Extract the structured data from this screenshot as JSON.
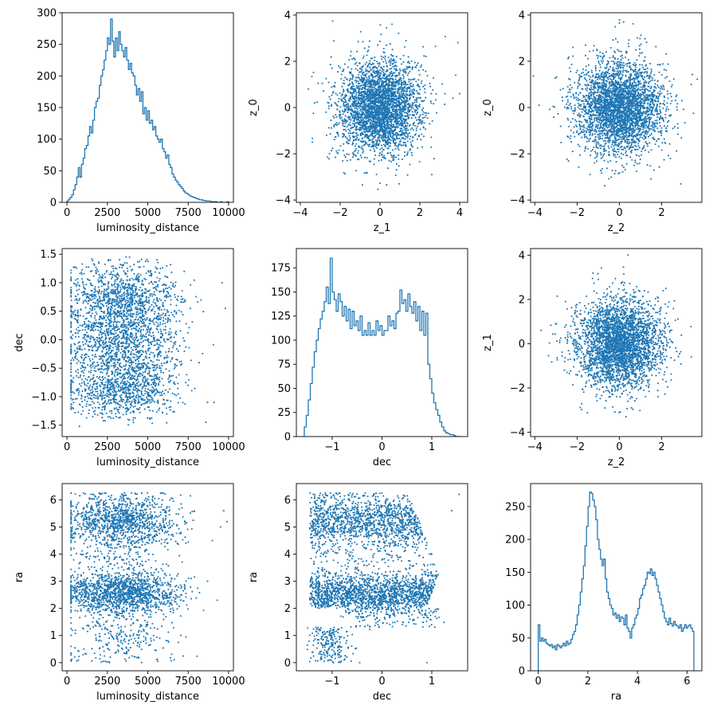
{
  "chart_data": [
    {
      "type": "histogram",
      "xlabel": "luminosity_distance",
      "ylabel": "",
      "xlim": [
        -300,
        10300
      ],
      "ylim": [
        0,
        300
      ],
      "xticks": [
        0,
        2500,
        5000,
        7500,
        10000
      ],
      "xtick_labels": [
        "0",
        "2500",
        "5000",
        "7500",
        "10000"
      ],
      "yticks": [
        0,
        50,
        100,
        150,
        200,
        250,
        300
      ],
      "ytick_labels": [
        "0",
        "50",
        "100",
        "150",
        "200",
        "250",
        "300"
      ],
      "bins": {
        "start": 0,
        "width": 100,
        "counts": [
          2,
          5,
          8,
          12,
          20,
          28,
          40,
          55,
          40,
          60,
          70,
          85,
          90,
          105,
          120,
          110,
          130,
          150,
          160,
          165,
          185,
          200,
          210,
          225,
          240,
          260,
          250,
          290,
          255,
          230,
          260,
          240,
          270,
          250,
          240,
          230,
          245,
          225,
          210,
          220,
          205,
          200,
          185,
          170,
          180,
          160,
          175,
          140,
          150,
          130,
          145,
          125,
          130,
          115,
          120,
          105,
          100,
          95,
          100,
          85,
          80,
          70,
          75,
          60,
          55,
          45,
          40,
          35,
          32,
          28,
          25,
          22,
          18,
          15,
          14,
          12,
          10,
          9,
          8,
          7,
          6,
          5,
          4,
          4,
          3,
          3,
          2,
          2,
          2,
          1,
          1,
          1,
          1,
          0,
          0,
          1,
          0,
          0,
          0,
          1
        ]
      },
      "style": {
        "color": "#1f77b4"
      }
    },
    {
      "type": "scatter",
      "xlabel": "z_1",
      "ylabel": "z_0",
      "xlim": [
        -4.2,
        4.4
      ],
      "ylim": [
        -4.1,
        4.1
      ],
      "xticks": [
        -4,
        -2,
        0,
        2,
        4
      ],
      "xtick_labels": [
        "−4",
        "−2",
        "0",
        "2",
        "4"
      ],
      "yticks": [
        -4,
        -2,
        0,
        2,
        4
      ],
      "ytick_labels": [
        "−4",
        "−2",
        "0",
        "2",
        "4"
      ],
      "distribution": {
        "kind": "gaussian2d",
        "n": 3200,
        "mean": [
          0,
          0
        ],
        "sd": [
          1,
          1
        ]
      },
      "outliers": [
        [
          4.0,
          0.6
        ],
        [
          3.8,
          1.4
        ],
        [
          -3.6,
          0.8
        ],
        [
          -3.4,
          -1.5
        ],
        [
          2.6,
          -2.9
        ],
        [
          0.6,
          3.6
        ]
      ],
      "style": {
        "color": "#1f77b4"
      }
    },
    {
      "type": "scatter",
      "xlabel": "z_2",
      "ylabel": "z_0",
      "xlim": [
        -4.2,
        3.9
      ],
      "ylim": [
        -4.1,
        4.1
      ],
      "xticks": [
        -4,
        -2,
        0,
        2
      ],
      "xtick_labels": [
        "−4",
        "−2",
        "0",
        "2"
      ],
      "yticks": [
        -4,
        -2,
        0,
        2,
        4
      ],
      "ytick_labels": [
        "−4",
        "−2",
        "0",
        "2",
        "4"
      ],
      "distribution": {
        "kind": "gaussian2d",
        "n": 3200,
        "mean": [
          0,
          0
        ],
        "sd": [
          1,
          1
        ]
      },
      "outliers": [
        [
          -3.8,
          0.1
        ],
        [
          3.4,
          1.0
        ],
        [
          2.9,
          -3.3
        ],
        [
          -2.2,
          2.6
        ],
        [
          0.2,
          3.7
        ]
      ],
      "style": {
        "color": "#1f77b4"
      }
    },
    {
      "type": "scatter",
      "xlabel": "luminosity_distance",
      "ylabel": "dec",
      "xlim": [
        -300,
        10300
      ],
      "ylim": [
        -1.7,
        1.6
      ],
      "xticks": [
        0,
        2500,
        5000,
        7500,
        10000
      ],
      "xtick_labels": [
        "0",
        "2500",
        "5000",
        "7500",
        "10000"
      ],
      "yticks": [
        -1.5,
        -1.0,
        -0.5,
        0.0,
        0.5,
        1.0,
        1.5
      ],
      "ytick_labels": [
        "−1.5",
        "−1.0",
        "−0.5",
        "0.0",
        "0.5",
        "1.0",
        "1.5"
      ],
      "distribution": {
        "kind": "dist_dec",
        "n": 3000
      },
      "outliers": [
        [
          9800,
          0.55
        ],
        [
          9600,
          1.0
        ],
        [
          9100,
          -1.1
        ],
        [
          8600,
          -1.45
        ],
        [
          8700,
          -1.1
        ],
        [
          8300,
          0.7
        ]
      ],
      "style": {
        "color": "#1f77b4"
      }
    },
    {
      "type": "histogram",
      "xlabel": "dec",
      "ylabel": "",
      "xlim": [
        -1.72,
        1.72
      ],
      "ylim": [
        0,
        195
      ],
      "xticks": [
        -1,
        0,
        1
      ],
      "xtick_labels": [
        "−1",
        "0",
        "1"
      ],
      "yticks": [
        0,
        25,
        50,
        75,
        100,
        125,
        150,
        175
      ],
      "ytick_labels": [
        "0",
        "25",
        "50",
        "75",
        "100",
        "125",
        "150",
        "175"
      ],
      "bins": {
        "start": -1.6,
        "width": 0.04,
        "counts": [
          0,
          10,
          22,
          38,
          55,
          72,
          88,
          100,
          112,
          122,
          130,
          140,
          155,
          138,
          185,
          150,
          142,
          130,
          148,
          140,
          125,
          135,
          120,
          132,
          112,
          130,
          115,
          120,
          110,
          125,
          105,
          110,
          105,
          118,
          105,
          110,
          105,
          120,
          110,
          115,
          105,
          110,
          110,
          125,
          115,
          120,
          112,
          128,
          130,
          152,
          138,
          142,
          130,
          148,
          135,
          128,
          140,
          120,
          135,
          110,
          130,
          105,
          128,
          75,
          60,
          45,
          35,
          28,
          22,
          15,
          10,
          6,
          4,
          3,
          2,
          2,
          1,
          0,
          0,
          0
        ]
      },
      "style": {
        "color": "#1f77b4"
      }
    },
    {
      "type": "scatter",
      "xlabel": "z_2",
      "ylabel": "z_1",
      "xlim": [
        -4.2,
        3.9
      ],
      "ylim": [
        -4.2,
        4.3
      ],
      "xticks": [
        -4,
        -2,
        0,
        2
      ],
      "xtick_labels": [
        "−4",
        "−2",
        "0",
        "2"
      ],
      "yticks": [
        -4,
        -2,
        0,
        2,
        4
      ],
      "ytick_labels": [
        "−4",
        "−2",
        "0",
        "2",
        "4"
      ],
      "distribution": {
        "kind": "gaussian2d",
        "n": 3200,
        "mean": [
          0,
          0
        ],
        "sd": [
          1,
          1
        ]
      },
      "outliers": [
        [
          -3.7,
          0.6
        ],
        [
          3.4,
          -0.6
        ],
        [
          0.4,
          4.0
        ],
        [
          -2.6,
          -1.2
        ],
        [
          2.2,
          2.5
        ]
      ],
      "style": {
        "color": "#1f77b4"
      }
    },
    {
      "type": "scatter",
      "xlabel": "luminosity_distance",
      "ylabel": "ra",
      "xlim": [
        -300,
        10300
      ],
      "ylim": [
        -0.3,
        6.6
      ],
      "xticks": [
        0,
        2500,
        5000,
        7500,
        10000
      ],
      "xtick_labels": [
        "0",
        "2500",
        "5000",
        "7500",
        "10000"
      ],
      "yticks": [
        0,
        1,
        2,
        3,
        4,
        5,
        6
      ],
      "ytick_labels": [
        "0",
        "1",
        "2",
        "3",
        "4",
        "5",
        "6"
      ],
      "distribution": {
        "kind": "dist_ra",
        "n": 3000
      },
      "outliers": [
        [
          9900,
          5.2
        ],
        [
          9700,
          5.6
        ],
        [
          9500,
          5.0
        ],
        [
          9300,
          2.3
        ],
        [
          8700,
          3.0
        ],
        [
          9000,
          4.5
        ]
      ],
      "style": {
        "color": "#1f77b4"
      }
    },
    {
      "type": "scatter",
      "xlabel": "dec",
      "ylabel": "ra",
      "xlim": [
        -1.72,
        1.72
      ],
      "ylim": [
        -0.3,
        6.6
      ],
      "xticks": [
        -1,
        0,
        1
      ],
      "xtick_labels": [
        "−1",
        "0",
        "1"
      ],
      "yticks": [
        0,
        1,
        2,
        3,
        4,
        5,
        6
      ],
      "ytick_labels": [
        "0",
        "1",
        "2",
        "3",
        "4",
        "5",
        "6"
      ],
      "distribution": {
        "kind": "dec_ra",
        "n": 3400
      },
      "outliers": [
        [
          1.55,
          6.2
        ],
        [
          1.4,
          5.6
        ],
        [
          0.9,
          0.0
        ]
      ],
      "style": {
        "color": "#1f77b4"
      }
    },
    {
      "type": "histogram",
      "xlabel": "ra",
      "ylabel": "",
      "xlim": [
        -0.31,
        6.6
      ],
      "ylim": [
        0,
        285
      ],
      "xticks": [
        0,
        2,
        4,
        6
      ],
      "xtick_labels": [
        "0",
        "2",
        "4",
        "6"
      ],
      "yticks": [
        0,
        50,
        100,
        150,
        200,
        250
      ],
      "ytick_labels": [
        "0",
        "50",
        "100",
        "150",
        "200",
        "250"
      ],
      "bins": {
        "start": 0,
        "width": 0.0628,
        "counts": [
          70,
          45,
          50,
          45,
          48,
          42,
          40,
          38,
          40,
          35,
          38,
          32,
          40,
          38,
          35,
          38,
          42,
          38,
          45,
          40,
          42,
          48,
          55,
          60,
          70,
          85,
          100,
          120,
          140,
          160,
          190,
          220,
          250,
          272,
          270,
          260,
          250,
          230,
          200,
          185,
          170,
          160,
          170,
          140,
          120,
          110,
          100,
          95,
          85,
          88,
          80,
          85,
          75,
          82,
          80,
          70,
          85,
          65,
          60,
          50,
          65,
          70,
          80,
          85,
          95,
          110,
          115,
          125,
          130,
          140,
          150,
          148,
          155,
          145,
          150,
          140,
          130,
          120,
          110,
          100,
          90,
          80,
          75,
          70,
          80,
          72,
          68,
          75,
          70,
          68,
          65,
          70,
          60,
          65,
          70,
          65,
          68,
          70,
          65,
          60
        ]
      },
      "style": {
        "color": "#1f77b4"
      }
    }
  ]
}
